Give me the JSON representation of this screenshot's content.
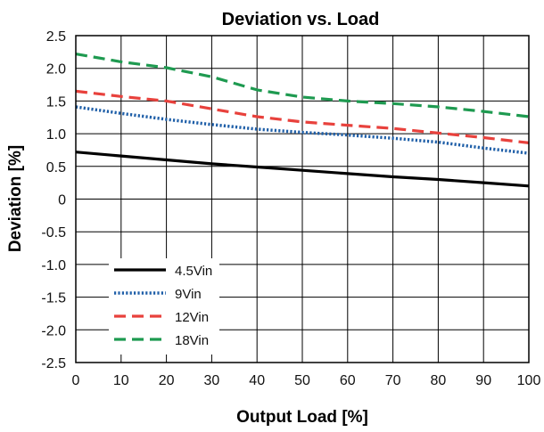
{
  "chart_data": {
    "type": "line",
    "title": "Deviation vs. Load",
    "xlabel": "Output Load [%]",
    "ylabel": "Deviation [%]",
    "xlim": [
      0,
      100
    ],
    "ylim": [
      -2.5,
      2.5
    ],
    "x_ticks": [
      0,
      10,
      20,
      30,
      40,
      50,
      60,
      70,
      80,
      90,
      100
    ],
    "x_tick_labels": [
      "0",
      "10",
      "20",
      "30",
      "40",
      "50",
      "60",
      "70",
      "80",
      "90",
      "100"
    ],
    "y_ticks": [
      2.5,
      2.0,
      1.5,
      1.0,
      0.5,
      0,
      -0.5,
      -1.0,
      -1.5,
      -2.0,
      -2.5
    ],
    "y_tick_labels": [
      "2.5",
      "2.0",
      "1.5",
      "1.0",
      "0.5",
      "0",
      "-0.5",
      "-1.0",
      "-1.5",
      "-2.0",
      "-2.5"
    ],
    "grid": true,
    "legend_position": "bottom-left",
    "x": [
      0,
      10,
      20,
      30,
      40,
      50,
      60,
      70,
      80,
      90,
      100
    ],
    "series": [
      {
        "name": "4.5Vin",
        "style": "solid",
        "color": "#000000",
        "values": [
          0.72,
          0.66,
          0.6,
          0.54,
          0.49,
          0.44,
          0.39,
          0.34,
          0.3,
          0.25,
          0.2
        ]
      },
      {
        "name": "9Vin",
        "style": "dotted",
        "color": "#1f5fa8",
        "values": [
          1.41,
          1.31,
          1.22,
          1.14,
          1.07,
          1.02,
          0.98,
          0.93,
          0.87,
          0.78,
          0.7
        ]
      },
      {
        "name": "12Vin",
        "style": "dashed",
        "color": "#e8413c",
        "values": [
          1.65,
          1.57,
          1.5,
          1.38,
          1.26,
          1.18,
          1.13,
          1.08,
          1.01,
          0.94,
          0.86
        ]
      },
      {
        "name": "18Vin",
        "style": "dashed",
        "color": "#1e9a50",
        "values": [
          2.22,
          2.1,
          2.01,
          1.87,
          1.67,
          1.56,
          1.5,
          1.46,
          1.41,
          1.34,
          1.26
        ]
      }
    ]
  }
}
